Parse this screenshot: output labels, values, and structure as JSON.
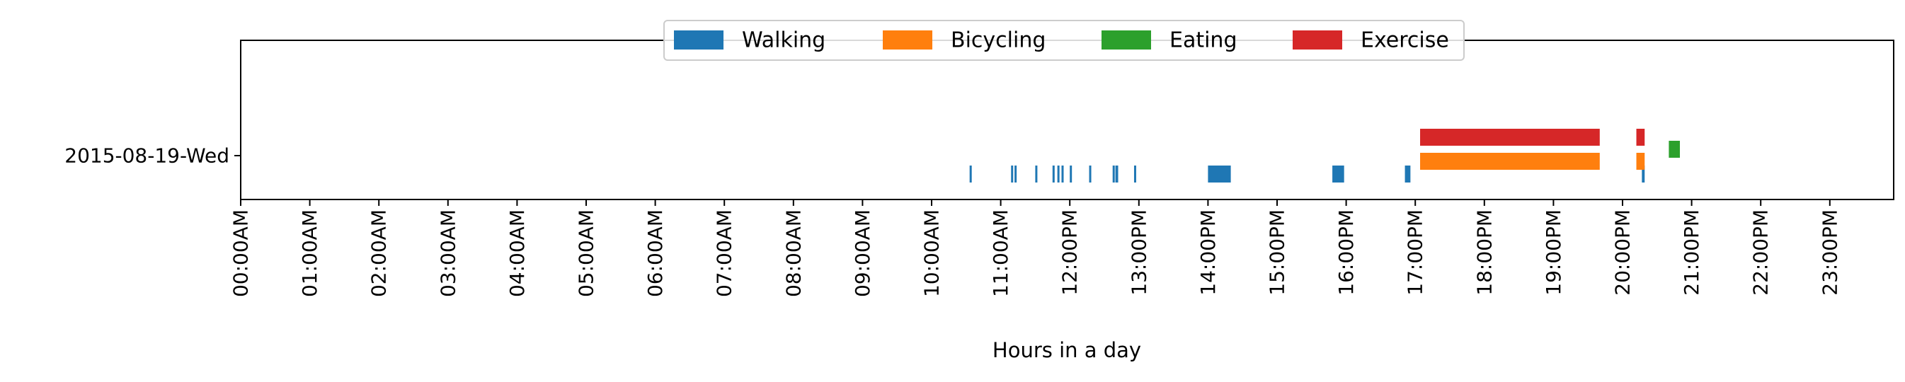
{
  "chart_data": {
    "type": "timeline",
    "xlabel": "Hours in a day",
    "ylabel": "",
    "xlim": [
      0,
      24
    ],
    "x_ticks": [
      "00:00AM",
      "01:00AM",
      "02:00AM",
      "03:00AM",
      "04:00AM",
      "05:00AM",
      "06:00AM",
      "07:00AM",
      "08:00AM",
      "09:00AM",
      "10:00AM",
      "11:00AM",
      "12:00PM",
      "13:00PM",
      "14:00PM",
      "15:00PM",
      "16:00PM",
      "17:00PM",
      "18:00PM",
      "19:00PM",
      "20:00PM",
      "21:00PM",
      "22:00PM",
      "23:00PM"
    ],
    "categories": [
      "2015-08-19-Wed"
    ],
    "legend_position": "top-center",
    "grid": false,
    "series": [
      {
        "name": "Walking",
        "color": "#1f77b4",
        "intervals": [
          [
            10.55,
            10.58
          ],
          [
            11.15,
            11.18
          ],
          [
            11.2,
            11.23
          ],
          [
            11.5,
            11.53
          ],
          [
            11.75,
            11.78
          ],
          [
            11.82,
            11.85
          ],
          [
            11.88,
            11.91
          ],
          [
            12.0,
            12.03
          ],
          [
            12.28,
            12.31
          ],
          [
            12.62,
            12.65
          ],
          [
            12.66,
            12.7
          ],
          [
            12.93,
            12.96
          ],
          [
            14.0,
            14.33
          ],
          [
            15.8,
            15.97
          ],
          [
            16.85,
            16.93
          ],
          [
            20.28,
            20.32
          ]
        ]
      },
      {
        "name": "Bicycling",
        "color": "#ff7f0e",
        "intervals": [
          [
            17.07,
            19.67
          ],
          [
            20.2,
            20.32
          ]
        ]
      },
      {
        "name": "Eating",
        "color": "#2ca02c",
        "intervals": [
          [
            20.67,
            20.83
          ]
        ]
      },
      {
        "name": "Exercise",
        "color": "#d62728",
        "intervals": [
          [
            17.07,
            19.67
          ],
          [
            20.2,
            20.32
          ]
        ]
      }
    ]
  }
}
